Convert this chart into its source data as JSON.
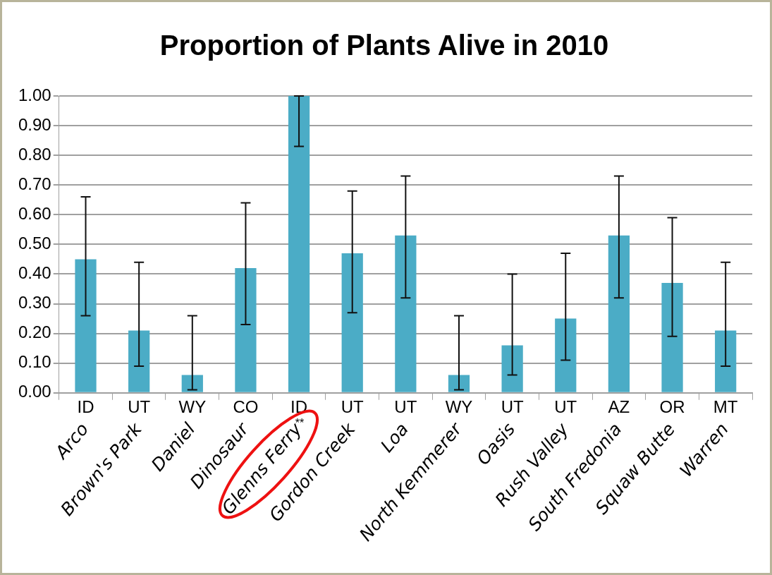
{
  "chart_data": {
    "type": "bar",
    "title": "Proportion of Plants Alive in 2010",
    "categories": [
      "Arco",
      "Brown's Park",
      "Daniel",
      "Dinosaur",
      "Glenns Ferry",
      "Gordon Creek",
      "Loa",
      "North Kemmerer",
      "Oasis",
      "Rush Valley",
      "South Fredonia",
      "Squaw Butte",
      "Warren"
    ],
    "values": [
      0.45,
      0.21,
      0.06,
      0.42,
      1.0,
      0.47,
      0.53,
      0.06,
      0.16,
      0.25,
      0.53,
      0.37,
      0.21
    ],
    "errors": [
      [
        0.26,
        0.66
      ],
      [
        0.09,
        0.44
      ],
      [
        0.01,
        0.26
      ],
      [
        0.23,
        0.64
      ],
      [
        0.83,
        1.0
      ],
      [
        0.27,
        0.68
      ],
      [
        0.32,
        0.73
      ],
      [
        0.01,
        0.26
      ],
      [
        0.06,
        0.4
      ],
      [
        0.11,
        0.47
      ],
      [
        0.32,
        0.73
      ],
      [
        0.19,
        0.59
      ],
      [
        0.09,
        0.44
      ]
    ],
    "color": "#4bacc6",
    "ylim": [
      0,
      1
    ],
    "yticks": [
      {
        "value": 0,
        "label": "0.00"
      },
      {
        "value": 0.1,
        "label": "0.10"
      },
      {
        "value": 0.2,
        "label": "0.20"
      },
      {
        "value": 0.3,
        "label": "0.30"
      },
      {
        "value": 0.4,
        "label": "0.40"
      },
      {
        "value": 0.5,
        "label": "0.50"
      },
      {
        "value": 0.6,
        "label": "0.60"
      },
      {
        "value": 0.7,
        "label": "0.70"
      },
      {
        "value": 0.8,
        "label": "0.80"
      },
      {
        "value": 0.9,
        "label": "0.90"
      },
      {
        "value": 1,
        "label": "1.00"
      }
    ],
    "grid": "y",
    "legend": false,
    "annotations": [
      "ID",
      "UT",
      "WY",
      "CO",
      "ID",
      "UT",
      "UT",
      "WY",
      "UT",
      "UT",
      "AZ",
      "OR",
      "MT",
      "**"
    ]
  }
}
